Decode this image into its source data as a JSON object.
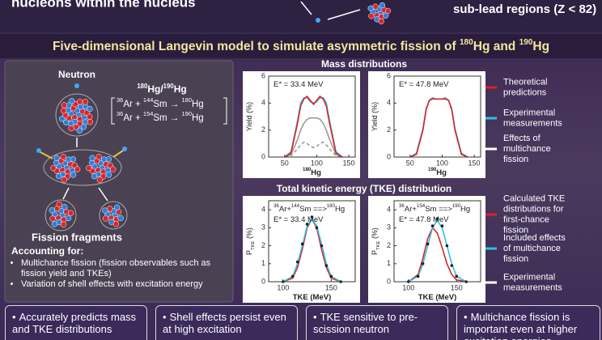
{
  "header": {
    "left": "nucleons within the nucleus",
    "right": "sub-lead regions (Z < 82)"
  },
  "title": [
    {
      "t": "Five-dimensional Langevin model to simulate asymmetric fission of "
    },
    {
      "t": "180",
      "sup": true
    },
    {
      "t": "Hg and "
    },
    {
      "t": "190",
      "sup": true
    },
    {
      "t": "Hg"
    }
  ],
  "left_panel": {
    "neutron": "Neutron",
    "compound": [
      {
        "t": "180",
        "sup": true
      },
      {
        "t": "Hg/"
      },
      {
        "t": "190",
        "sup": true
      },
      {
        "t": "Hg"
      }
    ],
    "reactions": [
      [
        {
          "t": "36",
          "sup": true
        },
        {
          "t": "Ar + "
        },
        {
          "t": "144",
          "sup": true
        },
        {
          "t": "Sm → "
        },
        {
          "t": "180",
          "sup": true
        },
        {
          "t": "Hg"
        }
      ],
      [
        {
          "t": "36",
          "sup": true
        },
        {
          "t": "Ar + "
        },
        {
          "t": "154",
          "sup": true
        },
        {
          "t": "Sm → "
        },
        {
          "t": "190",
          "sup": true
        },
        {
          "t": "Hg"
        }
      ]
    ],
    "fragments": "Fission fragments",
    "accounting_title": "Accounting for:",
    "bullets": [
      "Multichance fission (fission observables such as fission yield and TKEs)",
      "Variation of shell effects with excitation energy"
    ]
  },
  "mass_title": "Mass distributions",
  "tke_title": "Total kinetic energy (TKE) distribution",
  "legend_mass": [
    {
      "name": "Theoretical predictions",
      "color": "#e0202a"
    },
    {
      "name": "Experimental measurements",
      "color": "#29c4de"
    },
    {
      "name": "Effects of multichance fission",
      "color": "#ffffff"
    }
  ],
  "legend_tke": [
    {
      "name": "Calculated TKE distributions for first-chance fission",
      "color": "#e0202a"
    },
    {
      "name": "Included effects of multichance fission",
      "color": "#29c4de"
    },
    {
      "name": "Experimental measurements",
      "color": "#ffffff"
    }
  ],
  "chart_data": [
    {
      "type": "line",
      "annotations": [
        [
          {
            "t": "E* = 33.4 MeV"
          }
        ]
      ],
      "xlabel": [
        {
          "t": "180",
          "sup": true
        },
        {
          "t": "Hg"
        }
      ],
      "ylabel": [
        {
          "t": "Yield (%)"
        }
      ],
      "xlim": [
        25,
        160
      ],
      "ylim": [
        0,
        6
      ],
      "xticks": [
        50,
        100,
        150
      ],
      "yticks": [
        0,
        2,
        4,
        6
      ],
      "x": [
        50,
        60,
        70,
        75,
        80,
        85,
        90,
        95,
        100,
        105,
        110,
        115,
        120,
        130,
        140
      ],
      "series": [
        {
          "color": "#9a9a9a",
          "values": [
            0,
            0.2,
            1.3,
            2.0,
            2.5,
            2.8,
            2.9,
            2.9,
            2.9,
            2.8,
            2.5,
            2.0,
            1.3,
            0.2,
            0
          ]
        },
        {
          "color": "#9a9a9a",
          "dash": true,
          "values": [
            0,
            0.1,
            0.6,
            0.9,
            1.1,
            1.0,
            0.8,
            0.7,
            0.8,
            1.0,
            1.1,
            0.9,
            0.6,
            0.1,
            0
          ]
        },
        {
          "color": "#29c4de",
          "values": [
            0,
            0.4,
            2.7,
            4.0,
            4.4,
            4.4,
            4.1,
            4.0,
            4.1,
            4.4,
            4.4,
            4.0,
            2.7,
            0.4,
            0
          ]
        },
        {
          "color": "#e0202a",
          "values": [
            0,
            0.3,
            2.5,
            3.8,
            4.3,
            4.5,
            4.2,
            3.9,
            4.2,
            4.5,
            4.3,
            3.8,
            2.5,
            0.3,
            0
          ]
        }
      ]
    },
    {
      "type": "line",
      "annotations": [
        [
          {
            "t": "E* = 47.8 MeV"
          }
        ]
      ],
      "xlabel": [
        {
          "t": "190",
          "sup": true
        },
        {
          "t": "Hg"
        }
      ],
      "ylabel": [
        {
          "t": "Yield (%)"
        }
      ],
      "xlim": [
        25,
        160
      ],
      "ylim": [
        0,
        6
      ],
      "xticks": [
        50,
        100,
        150
      ],
      "yticks": [
        0,
        2,
        4,
        6
      ],
      "x": [
        50,
        60,
        70,
        75,
        80,
        85,
        90,
        95,
        100,
        105,
        110,
        115,
        120,
        130,
        140
      ],
      "series": [
        {
          "color": "#29c4de",
          "values": [
            0,
            0.3,
            2.1,
            3.6,
            4.2,
            4.4,
            4.3,
            4.3,
            4.3,
            4.4,
            4.2,
            3.6,
            2.1,
            0.3,
            0
          ]
        },
        {
          "color": "#e0202a",
          "values": [
            0,
            0.2,
            2.0,
            3.5,
            4.2,
            4.3,
            4.3,
            4.3,
            4.3,
            4.3,
            4.2,
            3.5,
            2.0,
            0.2,
            0
          ]
        }
      ]
    },
    {
      "type": "line",
      "annotations": [
        [
          {
            "t": "36",
            "sup": true
          },
          {
            "t": "Ar+"
          },
          {
            "t": "144",
            "sup": true
          },
          {
            "t": "Sm ==>"
          },
          {
            "t": "180",
            "sup": true
          },
          {
            "t": "Hg"
          }
        ],
        [
          {
            "t": "E* = 33.4 MeV"
          }
        ]
      ],
      "xlabel": [
        {
          "t": "TKE (MeV)"
        }
      ],
      "ylabel": [
        {
          "t": "P"
        },
        {
          "t": "TKE",
          "sub": true
        },
        {
          "t": " (%)"
        }
      ],
      "xlim": [
        85,
        175
      ],
      "ylim": [
        0,
        4.5
      ],
      "xticks": [
        100,
        150
      ],
      "yticks": [
        0,
        1,
        2,
        3,
        4
      ],
      "x": [
        100,
        110,
        115,
        120,
        125,
        130,
        135,
        140,
        145,
        150,
        160
      ],
      "series": [
        {
          "color": "#e0202a",
          "values": [
            0,
            0.2,
            0.8,
            1.8,
            3.0,
            3.5,
            3.0,
            1.8,
            0.8,
            0.2,
            0
          ]
        },
        {
          "color": "#29c4de",
          "values": [
            0,
            0.3,
            1.0,
            2.0,
            3.1,
            3.5,
            3.1,
            2.1,
            1.0,
            0.3,
            0
          ]
        },
        {
          "color": "#222222",
          "markers": true,
          "values": [
            0,
            0.3,
            1.1,
            2.1,
            3.2,
            3.6,
            3.0,
            2.0,
            0.9,
            0.3,
            0
          ]
        }
      ]
    },
    {
      "type": "line",
      "annotations": [
        [
          {
            "t": "36",
            "sup": true
          },
          {
            "t": "Ar+"
          },
          {
            "t": "154",
            "sup": true
          },
          {
            "t": "Sm ==>"
          },
          {
            "t": "190",
            "sup": true
          },
          {
            "t": "Hg"
          }
        ],
        [
          {
            "t": "E* = 47.8 MeV"
          }
        ]
      ],
      "xlabel": [
        {
          "t": "TKE (MeV)"
        }
      ],
      "ylabel": [
        {
          "t": "P"
        },
        {
          "t": "TKE",
          "sub": true
        },
        {
          "t": " (%)"
        }
      ],
      "xlim": [
        85,
        175
      ],
      "ylim": [
        0,
        4.5
      ],
      "xticks": [
        100,
        150
      ],
      "yticks": [
        0,
        1,
        2,
        3,
        4
      ],
      "x": [
        100,
        110,
        115,
        120,
        125,
        130,
        135,
        140,
        145,
        150,
        160
      ],
      "series": [
        {
          "color": "#e0202a",
          "values": [
            0,
            0.4,
            1.3,
            2.4,
            3.0,
            2.7,
            1.9,
            1.0,
            0.4,
            0.1,
            0
          ]
        },
        {
          "color": "#29c4de",
          "values": [
            0,
            0.3,
            1.0,
            2.0,
            3.0,
            3.4,
            3.0,
            2.0,
            1.0,
            0.3,
            0
          ]
        },
        {
          "color": "#222222",
          "markers": true,
          "values": [
            0,
            0.3,
            1.0,
            2.1,
            3.1,
            3.5,
            3.1,
            2.0,
            0.9,
            0.3,
            0
          ]
        }
      ]
    }
  ],
  "conclusions": [
    "Accurately predicts mass and TKE distributions",
    "Shell effects persist even at high excitation",
    "TKE sensitive to pre-scission neutron",
    "Multichance fission is important even at higher excitation energies"
  ]
}
